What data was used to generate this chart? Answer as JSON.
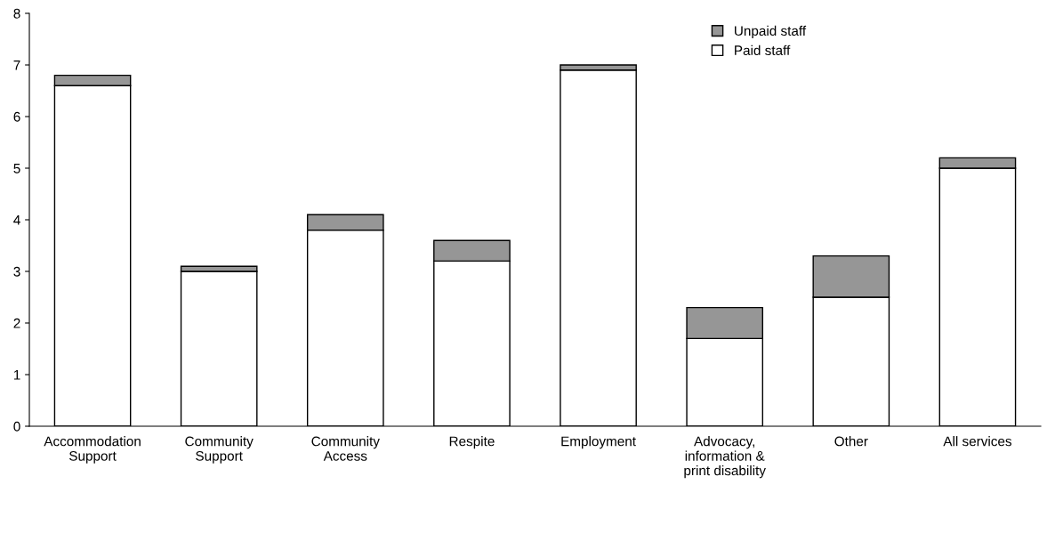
{
  "chart_data": {
    "type": "bar",
    "stacked": true,
    "categories": [
      "Accommodation\nSupport",
      "Community\nSupport",
      "Community\nAccess",
      "Respite",
      "Employment",
      "Advocacy,\ninformation &\nprint disability",
      "Other",
      "All services"
    ],
    "series": [
      {
        "name": "Paid staff",
        "color": "#ffffff",
        "values": [
          6.6,
          3.0,
          3.8,
          3.2,
          6.9,
          1.7,
          2.5,
          5.0
        ]
      },
      {
        "name": "Unpaid staff",
        "color": "#969696",
        "values": [
          0.2,
          0.1,
          0.3,
          0.4,
          0.1,
          0.6,
          0.8,
          0.2
        ]
      }
    ],
    "ylim": [
      0,
      8
    ],
    "yticks": [
      0,
      1,
      2,
      3,
      4,
      5,
      6,
      7,
      8
    ],
    "grid": false,
    "legend": "top right"
  }
}
